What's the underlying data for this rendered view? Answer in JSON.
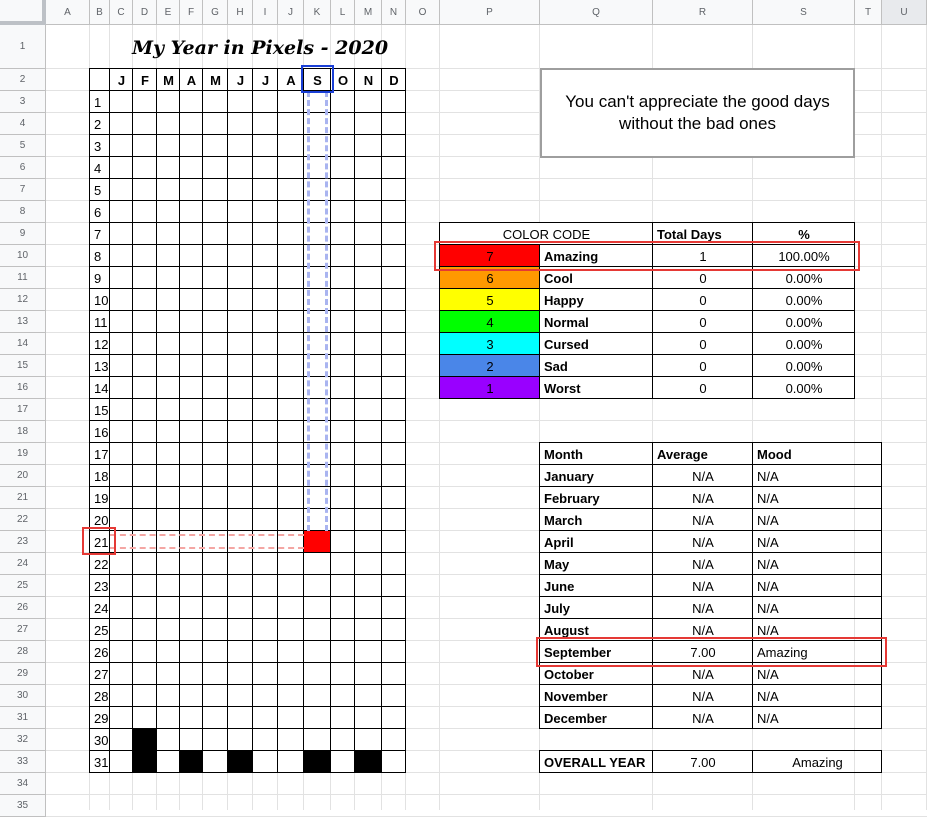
{
  "sheet": {
    "columns": [
      "A",
      "B",
      "C",
      "D",
      "E",
      "F",
      "G",
      "H",
      "I",
      "J",
      "K",
      "L",
      "M",
      "N",
      "O",
      "P",
      "Q",
      "R",
      "S",
      "T",
      "U"
    ],
    "selected_column": "U",
    "rows": [
      "1",
      "2",
      "3",
      "4",
      "5",
      "6",
      "7",
      "8",
      "9",
      "10",
      "11",
      "12",
      "13",
      "14",
      "15",
      "16",
      "17",
      "18",
      "19",
      "20",
      "21",
      "22",
      "23",
      "24",
      "25",
      "26",
      "27",
      "28",
      "29",
      "30",
      "31",
      "32",
      "33",
      "34",
      "35"
    ]
  },
  "pixels": {
    "title": "My Year in Pixels - 2020",
    "months": [
      "J",
      "F",
      "M",
      "A",
      "M",
      "J",
      "J",
      "A",
      "S",
      "O",
      "N",
      "D"
    ],
    "days": [
      "1",
      "2",
      "3",
      "4",
      "5",
      "6",
      "7",
      "8",
      "9",
      "10",
      "11",
      "12",
      "13",
      "14",
      "15",
      "16",
      "17",
      "18",
      "19",
      "20",
      "21",
      "22",
      "23",
      "24",
      "25",
      "26",
      "27",
      "28",
      "29",
      "30",
      "31"
    ],
    "highlighted_month": "S",
    "highlighted_day": "21",
    "filled_cell": {
      "month": "S",
      "day": "21",
      "color": "#ff0000"
    },
    "unavailable_color": "#000000"
  },
  "quote": {
    "line1": "You can't appreciate the good days",
    "line2": "without the bad ones"
  },
  "color_code": {
    "headers": [
      "COLOR CODE",
      "Total Days",
      "%"
    ],
    "rows": [
      {
        "value": "7",
        "mood": "Amazing",
        "total": "1",
        "pct": "100.00%",
        "color": "#ff0000"
      },
      {
        "value": "6",
        "mood": "Cool",
        "total": "0",
        "pct": "0.00%",
        "color": "#ff9900"
      },
      {
        "value": "5",
        "mood": "Happy",
        "total": "0",
        "pct": "0.00%",
        "color": "#ffff00"
      },
      {
        "value": "4",
        "mood": "Normal",
        "total": "0",
        "pct": "0.00%",
        "color": "#00ff00"
      },
      {
        "value": "3",
        "mood": "Cursed",
        "total": "0",
        "pct": "0.00%",
        "color": "#00ffff"
      },
      {
        "value": "2",
        "mood": "Sad",
        "total": "0",
        "pct": "0.00%",
        "color": "#4a86e8"
      },
      {
        "value": "1",
        "mood": "Worst",
        "total": "0",
        "pct": "0.00%",
        "color": "#9900ff"
      }
    ]
  },
  "monthly": {
    "headers": [
      "Month",
      "Average",
      "Mood"
    ],
    "rows": [
      {
        "month": "January",
        "avg": "N/A",
        "mood": "N/A"
      },
      {
        "month": "February",
        "avg": "N/A",
        "mood": "N/A"
      },
      {
        "month": "March",
        "avg": "N/A",
        "mood": "N/A"
      },
      {
        "month": "April",
        "avg": "N/A",
        "mood": "N/A"
      },
      {
        "month": "May",
        "avg": "N/A",
        "mood": "N/A"
      },
      {
        "month": "June",
        "avg": "N/A",
        "mood": "N/A"
      },
      {
        "month": "July",
        "avg": "N/A",
        "mood": "N/A"
      },
      {
        "month": "August",
        "avg": "N/A",
        "mood": "N/A"
      },
      {
        "month": "September",
        "avg": "7.00",
        "mood": "Amazing"
      },
      {
        "month": "October",
        "avg": "N/A",
        "mood": "N/A"
      },
      {
        "month": "November",
        "avg": "N/A",
        "mood": "N/A"
      },
      {
        "month": "December",
        "avg": "N/A",
        "mood": "N/A"
      }
    ]
  },
  "overall": {
    "label": "OVERALL YEAR",
    "avg": "7.00",
    "mood": "Amazing"
  },
  "highlight_colors": {
    "red": "#e53935",
    "blue": "#1a3fd6",
    "red_dash": "#f4a6a3",
    "blue_dash": "#a9b4f0"
  }
}
